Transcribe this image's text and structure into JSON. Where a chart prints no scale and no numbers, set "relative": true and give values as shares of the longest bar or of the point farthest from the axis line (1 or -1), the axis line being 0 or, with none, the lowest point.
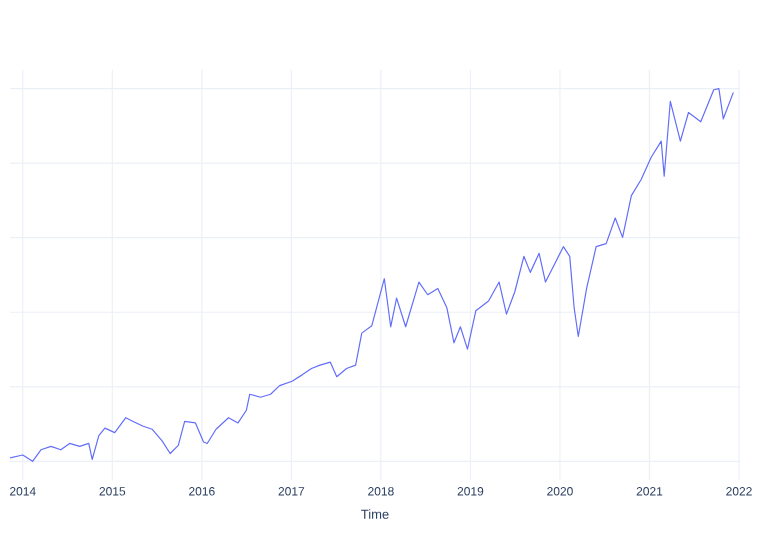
{
  "chart_data": {
    "type": "line",
    "xlabel": "Time",
    "relative": true,
    "grid": true,
    "color": "#636efa",
    "xlim": [
      "2013-11-10",
      "2022-01-05"
    ],
    "xticks": [
      "2014",
      "2015",
      "2016",
      "2017",
      "2018",
      "2019",
      "2020",
      "2021",
      "2022"
    ],
    "x": [
      "2013-11-10",
      "2014-01-01",
      "2014-02-10",
      "2014-03-16",
      "2014-04-26",
      "2014-06-05",
      "2014-07-11",
      "2014-08-21",
      "2014-09-27",
      "2014-10-11",
      "2014-11-07",
      "2014-12-02",
      "2015-01-11",
      "2015-02-25",
      "2015-03-27",
      "2015-05-07",
      "2015-06-13",
      "2015-07-23",
      "2015-08-25",
      "2015-09-27",
      "2015-10-23",
      "2015-12-06",
      "2016-01-08",
      "2016-01-23",
      "2016-02-28",
      "2016-04-19",
      "2016-05-28",
      "2016-07-01",
      "2016-07-15",
      "2016-08-28",
      "2016-10-08",
      "2016-11-14",
      "2017-01-04",
      "2017-02-14",
      "2017-03-24",
      "2017-04-28",
      "2017-06-09",
      "2017-07-05",
      "2017-08-14",
      "2017-09-20",
      "2017-10-15",
      "2017-11-25",
      "2018-01-15",
      "2018-02-10",
      "2018-03-06",
      "2018-04-12",
      "2018-06-05",
      "2018-07-11",
      "2018-08-21",
      "2018-09-27",
      "2018-10-26",
      "2018-11-21",
      "2018-12-20",
      "2019-01-23",
      "2019-03-16",
      "2019-04-28",
      "2019-05-28",
      "2019-07-01",
      "2019-08-07",
      "2019-09-02",
      "2019-10-08",
      "2019-11-03",
      "2019-12-13",
      "2020-01-15",
      "2020-02-10",
      "2020-02-28",
      "2020-03-16",
      "2020-04-19",
      "2020-05-28",
      "2020-07-08",
      "2020-08-14",
      "2020-09-13",
      "2020-10-19",
      "2020-11-28",
      "2021-01-08",
      "2021-02-18",
      "2021-03-02",
      "2021-03-27",
      "2021-05-07",
      "2021-06-09",
      "2021-07-29",
      "2021-09-20",
      "2021-10-11",
      "2021-10-29",
      "2021-12-09"
    ],
    "values": [
      0.009,
      0.017,
      0,
      0.031,
      0.04,
      0.031,
      0.048,
      0.04,
      0.048,
      0.005,
      0.069,
      0.089,
      0.077,
      0.117,
      0.107,
      0.094,
      0.086,
      0.055,
      0.021,
      0.043,
      0.107,
      0.103,
      0.052,
      0.048,
      0.086,
      0.117,
      0.103,
      0.137,
      0.18,
      0.172,
      0.18,
      0.203,
      0.215,
      0.232,
      0.249,
      0.258,
      0.266,
      0.227,
      0.249,
      0.258,
      0.344,
      0.364,
      0.49,
      0.361,
      0.438,
      0.361,
      0.481,
      0.447,
      0.464,
      0.412,
      0.318,
      0.361,
      0.301,
      0.404,
      0.43,
      0.481,
      0.395,
      0.455,
      0.55,
      0.507,
      0.558,
      0.481,
      0.533,
      0.576,
      0.55,
      0.412,
      0.335,
      0.464,
      0.576,
      0.584,
      0.653,
      0.601,
      0.713,
      0.756,
      0.816,
      0.859,
      0.765,
      0.966,
      0.859,
      0.936,
      0.911,
      0.997,
      1.0,
      0.919,
      0.99
    ]
  }
}
